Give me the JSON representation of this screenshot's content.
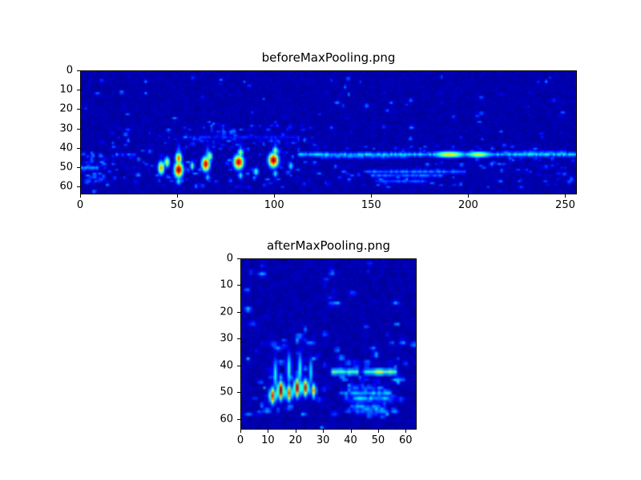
{
  "figure": {
    "background": "#ffffff",
    "colormap_low": "#000080",
    "colormap_high": "#800000"
  },
  "chart_data": [
    {
      "type": "heatmap",
      "title": "beforeMaxPooling.png",
      "xlabel": "",
      "ylabel": "",
      "colormap": "jet",
      "xlim": [
        0,
        256
      ],
      "ylim": [
        64,
        0
      ],
      "xticks": [
        0,
        50,
        100,
        150,
        200,
        250
      ],
      "yticks": [
        0,
        10,
        20,
        30,
        40,
        50,
        60
      ],
      "xmax": 256,
      "ymax": 64,
      "data_width": 256,
      "data_height": 64,
      "noise": {
        "seed": 42,
        "base": 0.02,
        "jitter": 0.05,
        "speckles": 600,
        "speckle_min": 0.07,
        "speckle_max": 0.3,
        "regions": [
          {
            "x1": 0,
            "x2": 256,
            "y1": 1,
            "y2": 63,
            "w": 0.25
          },
          {
            "x1": 10,
            "x2": 120,
            "y1": 30,
            "y2": 60,
            "w": 0.3
          },
          {
            "x1": 120,
            "x2": 256,
            "y1": 38,
            "y2": 60,
            "w": 0.25
          },
          {
            "x1": 40,
            "x2": 120,
            "y1": 26,
            "y2": 38,
            "w": 0.1
          },
          {
            "x1": 0,
            "x2": 12,
            "y1": 42,
            "y2": 58,
            "w": 0.1
          }
        ]
      },
      "hotspots": [
        {
          "x": 41,
          "y": 50,
          "rx": 1.2,
          "ry": 2.5,
          "v": 0.72
        },
        {
          "x": 44,
          "y": 47,
          "rx": 1.0,
          "ry": 2.0,
          "v": 0.6
        },
        {
          "x": 50,
          "y": 51,
          "rx": 1.6,
          "ry": 2.8,
          "v": 1.0
        },
        {
          "x": 50,
          "y": 45,
          "rx": 1.2,
          "ry": 2.2,
          "v": 0.8
        },
        {
          "x": 57,
          "y": 49,
          "rx": 0.8,
          "ry": 1.6,
          "v": 0.5
        },
        {
          "x": 64,
          "y": 48,
          "rx": 1.5,
          "ry": 2.6,
          "v": 0.95
        },
        {
          "x": 66,
          "y": 44,
          "rx": 1.0,
          "ry": 1.8,
          "v": 0.6
        },
        {
          "x": 81,
          "y": 47,
          "rx": 1.8,
          "ry": 2.6,
          "v": 0.95
        },
        {
          "x": 82,
          "y": 42,
          "rx": 1.0,
          "ry": 1.6,
          "v": 0.55
        },
        {
          "x": 99,
          "y": 46,
          "rx": 1.8,
          "ry": 2.6,
          "v": 1.0
        },
        {
          "x": 100,
          "y": 41,
          "rx": 1.0,
          "ry": 1.6,
          "v": 0.55
        },
        {
          "x": 90,
          "y": 52,
          "rx": 1.0,
          "ry": 1.5,
          "v": 0.45
        },
        {
          "x": 108,
          "y": 49,
          "rx": 0.9,
          "ry": 1.5,
          "v": 0.4
        },
        {
          "x": 50,
          "y": 57,
          "rx": 1.0,
          "ry": 1.5,
          "v": 0.4
        },
        {
          "x": 65,
          "y": 55,
          "rx": 0.9,
          "ry": 1.3,
          "v": 0.35
        },
        {
          "x": 82,
          "y": 54,
          "rx": 0.9,
          "ry": 1.4,
          "v": 0.4
        },
        {
          "x": 100,
          "y": 53,
          "rx": 0.9,
          "ry": 1.4,
          "v": 0.4
        },
        {
          "x": 50,
          "y": 46,
          "rx": 1.0,
          "ry": 5.5,
          "v": 0.4
        },
        {
          "x": 65,
          "y": 46,
          "rx": 1.0,
          "ry": 5.0,
          "v": 0.4
        },
        {
          "x": 82,
          "y": 45,
          "rx": 1.0,
          "ry": 5.0,
          "v": 0.4
        },
        {
          "x": 100,
          "y": 44,
          "rx": 1.0,
          "ry": 5.0,
          "v": 0.4
        },
        {
          "x": 190,
          "y": 43,
          "rx": 6.0,
          "ry": 1.2,
          "v": 0.65
        },
        {
          "x": 205,
          "y": 43,
          "rx": 5.0,
          "ry": 1.1,
          "v": 0.6
        }
      ],
      "streaks": [
        {
          "y": 43,
          "x1": 112,
          "x2": 255,
          "v": 0.42
        },
        {
          "y": 44,
          "x1": 125,
          "x2": 168,
          "v": 0.3
        },
        {
          "y": 42,
          "x1": 218,
          "x2": 250,
          "v": 0.3
        },
        {
          "y": 52,
          "x1": 148,
          "x2": 198,
          "v": 0.3
        },
        {
          "y": 54,
          "x1": 150,
          "x2": 186,
          "v": 0.28
        },
        {
          "y": 57,
          "x1": 152,
          "x2": 178,
          "v": 0.25
        },
        {
          "y": 34,
          "x1": 55,
          "x2": 112,
          "v": 0.18
        },
        {
          "y": 50,
          "x1": 0,
          "x2": 8,
          "v": 0.3
        }
      ]
    },
    {
      "type": "heatmap",
      "title": "afterMaxPooling.png",
      "xlabel": "",
      "ylabel": "",
      "colormap": "jet",
      "xlim": [
        0,
        64
      ],
      "ylim": [
        64,
        0
      ],
      "xticks": [
        0,
        10,
        20,
        30,
        40,
        50,
        60
      ],
      "yticks": [
        0,
        10,
        20,
        30,
        40,
        50,
        60
      ],
      "xmax": 64,
      "ymax": 64,
      "data_width": 64,
      "data_height": 64,
      "noise": {
        "seed": 7,
        "base": 0.02,
        "jitter": 0.05,
        "speckles": 260,
        "speckle_min": 0.07,
        "speckle_max": 0.35,
        "regions": [
          {
            "x1": 1,
            "x2": 63,
            "y1": 1,
            "y2": 63,
            "w": 0.3
          },
          {
            "x1": 38,
            "x2": 56,
            "y1": 47,
            "y2": 59,
            "w": 0.3
          },
          {
            "x1": 8,
            "x2": 30,
            "y1": 28,
            "y2": 58,
            "w": 0.2
          },
          {
            "x1": 30,
            "x2": 60,
            "y1": 38,
            "y2": 46,
            "w": 0.2
          }
        ]
      },
      "hotspots": [
        {
          "x": 11,
          "y": 51,
          "rx": 0.8,
          "ry": 2.2,
          "v": 0.85
        },
        {
          "x": 14,
          "y": 49,
          "rx": 0.8,
          "ry": 2.5,
          "v": 1.0
        },
        {
          "x": 17,
          "y": 50,
          "rx": 0.8,
          "ry": 2.2,
          "v": 0.8
        },
        {
          "x": 20,
          "y": 48,
          "rx": 0.8,
          "ry": 2.5,
          "v": 0.95
        },
        {
          "x": 23,
          "y": 48,
          "rx": 0.8,
          "ry": 2.2,
          "v": 0.9
        },
        {
          "x": 26,
          "y": 49,
          "rx": 0.7,
          "ry": 1.8,
          "v": 0.7
        },
        {
          "x": 12,
          "y": 43,
          "rx": 0.7,
          "ry": 4.5,
          "v": 0.38
        },
        {
          "x": 17,
          "y": 41,
          "rx": 0.7,
          "ry": 4.5,
          "v": 0.42
        },
        {
          "x": 21,
          "y": 41,
          "rx": 0.7,
          "ry": 4.5,
          "v": 0.4
        },
        {
          "x": 25,
          "y": 42,
          "rx": 0.6,
          "ry": 4.0,
          "v": 0.35
        },
        {
          "x": 20,
          "y": 30,
          "rx": 0.6,
          "ry": 1.2,
          "v": 0.3
        },
        {
          "x": 23,
          "y": 26,
          "rx": 0.5,
          "ry": 1.0,
          "v": 0.26
        },
        {
          "x": 50,
          "y": 42,
          "rx": 2.5,
          "ry": 0.9,
          "v": 0.6
        }
      ],
      "streaks": [
        {
          "y": 42,
          "x1": 33,
          "x2": 42,
          "v": 0.5
        },
        {
          "y": 42,
          "x1": 45,
          "x2": 56,
          "v": 0.55
        },
        {
          "y": 50,
          "x1": 40,
          "x2": 54,
          "v": 0.38
        },
        {
          "y": 52,
          "x1": 41,
          "x2": 53,
          "v": 0.42
        },
        {
          "y": 55,
          "x1": 40,
          "x2": 50,
          "v": 0.32
        },
        {
          "y": 57,
          "x1": 42,
          "x2": 52,
          "v": 0.3
        }
      ]
    }
  ]
}
